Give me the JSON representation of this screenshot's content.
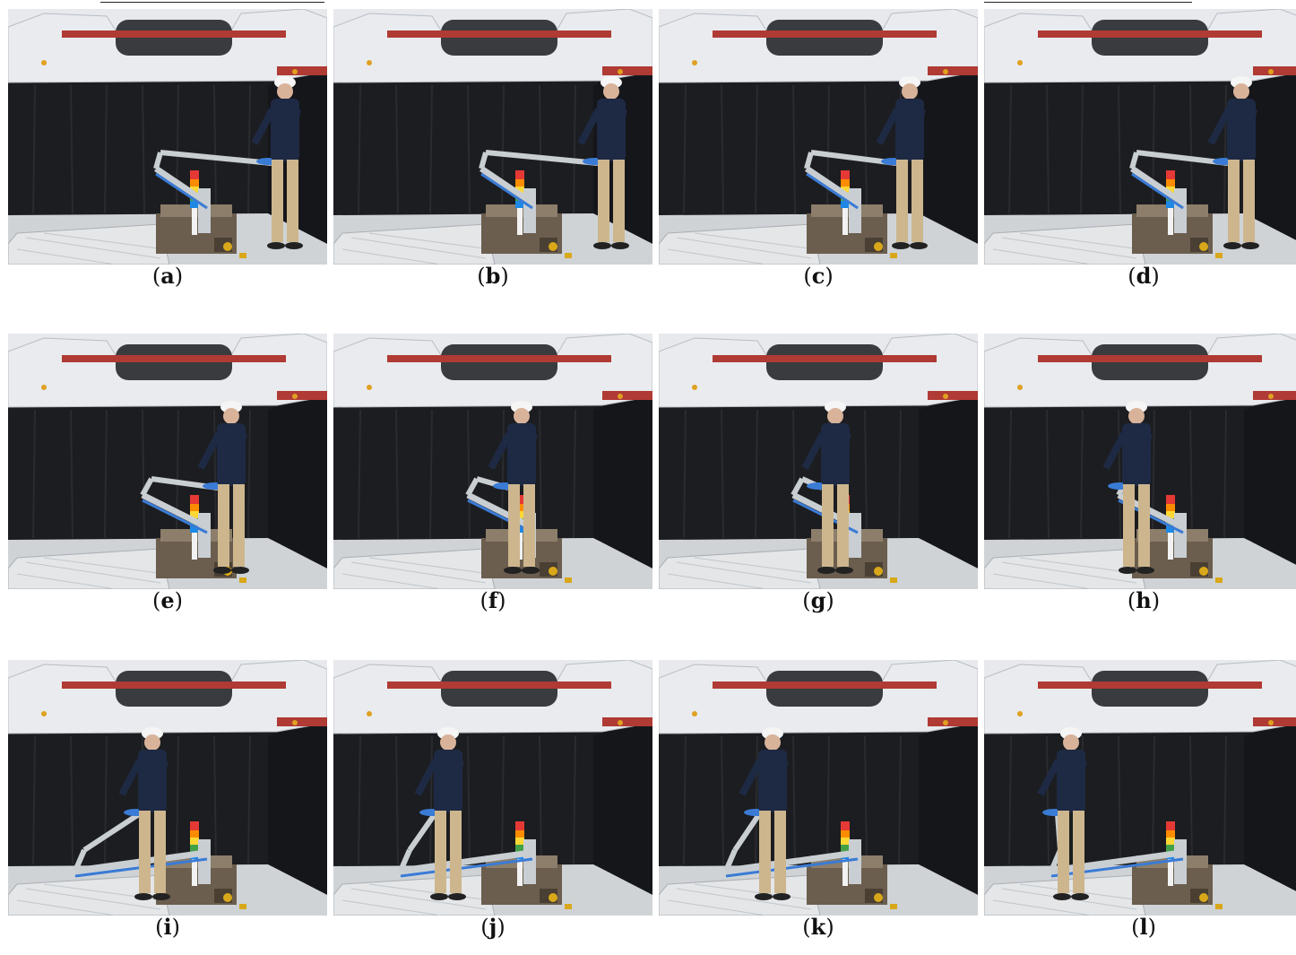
{
  "figure": {
    "panels": [
      {
        "id": "a",
        "label": "a"
      },
      {
        "id": "b",
        "label": "b"
      },
      {
        "id": "c",
        "label": "c"
      },
      {
        "id": "d",
        "label": "d"
      },
      {
        "id": "e",
        "label": "e"
      },
      {
        "id": "f",
        "label": "f"
      },
      {
        "id": "g",
        "label": "g"
      },
      {
        "id": "h",
        "label": "h"
      },
      {
        "id": "i",
        "label": "i"
      },
      {
        "id": "j",
        "label": "j"
      },
      {
        "id": "k",
        "label": "k"
      },
      {
        "id": "l",
        "label": "l"
      }
    ]
  },
  "colors": {
    "curtain": "#1c1d20",
    "floor": "#cfd3d6",
    "car_body": "#e9ebee",
    "red_beam": "#b03a34",
    "arm_metal": "#c9ced3",
    "arm_blue": "#3a7bd5",
    "pants": "#cdb68e",
    "sweater": "#1e2a44"
  }
}
